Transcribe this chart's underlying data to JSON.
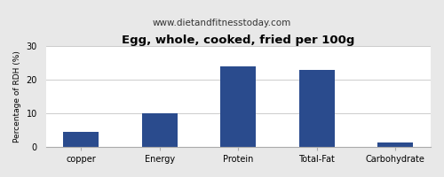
{
  "title": "Egg, whole, cooked, fried per 100g",
  "subtitle": "www.dietandfitnesstoday.com",
  "categories": [
    "copper",
    "Energy",
    "Protein",
    "Total-Fat",
    "Carbohydrate"
  ],
  "values": [
    4.5,
    10.0,
    24.0,
    23.0,
    1.2
  ],
  "bar_color": "#2a4b8d",
  "ylabel": "Percentage of RDH (%)",
  "ylim": [
    0,
    30
  ],
  "yticks": [
    0,
    10,
    20,
    30
  ],
  "background_color": "#e8e8e8",
  "plot_bg_color": "#ffffff",
  "title_fontsize": 9.5,
  "subtitle_fontsize": 7.5,
  "ylabel_fontsize": 6.5,
  "xlabel_fontsize": 7,
  "tick_fontsize": 7
}
